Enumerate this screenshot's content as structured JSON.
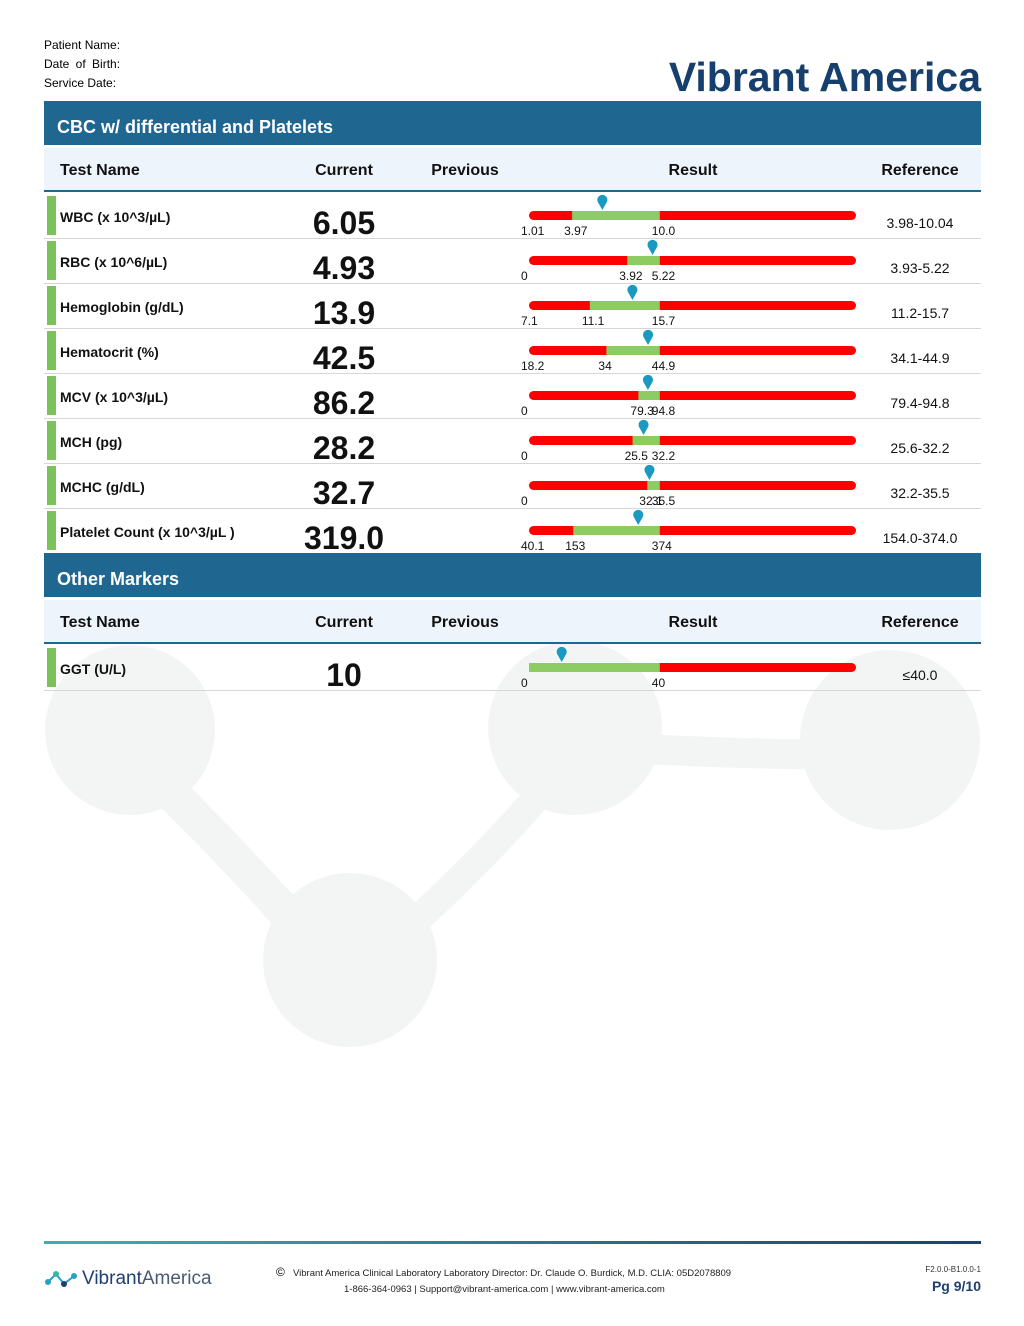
{
  "header": {
    "patient_name_label": "Patient Name:",
    "dob_label": "Date of Birth:",
    "service_date_label": "Service Date:",
    "brand": "Vibrant America"
  },
  "sections": [
    {
      "title": "CBC w/ differential and Platelets",
      "columns": [
        "Test Name",
        "Current",
        "Previous",
        "Result",
        "Reference"
      ],
      "rows": [
        {
          "name": "WBC (x 10^3/µL)",
          "current": "6.05",
          "ticks": [
            "1.01",
            "3.97",
            "10.0"
          ],
          "reference": "3.98-10.04"
        },
        {
          "name": "RBC (x 10^6/µL)",
          "current": "4.93",
          "ticks": [
            "0",
            "3.92",
            "5.22"
          ],
          "reference": "3.93-5.22"
        },
        {
          "name": "Hemoglobin (g/dL)",
          "current": "13.9",
          "ticks": [
            "7.1",
            "11.1",
            "15.7"
          ],
          "reference": "11.2-15.7"
        },
        {
          "name": "Hematocrit (%)",
          "current": "42.5",
          "ticks": [
            "18.2",
            "34",
            "44.9"
          ],
          "reference": "34.1-44.9"
        },
        {
          "name": "MCV (x 10^3/µL)",
          "current": "86.2",
          "ticks": [
            "0",
            "79.3",
            "94.8"
          ],
          "reference": "79.4-94.8"
        },
        {
          "name": "MCH (pg)",
          "current": "28.2",
          "ticks": [
            "0",
            "25.5",
            "32.2"
          ],
          "reference": "25.6-32.2"
        },
        {
          "name": "MCHC (g/dL)",
          "current": "32.7",
          "ticks": [
            "0",
            "32.1",
            "35.5"
          ],
          "reference": "32.2-35.5"
        },
        {
          "name": "Platelet Count (x 10^3/µL )",
          "current": "319.0",
          "ticks": [
            "40.1",
            "153",
            "374"
          ],
          "reference": "154.0-374.0"
        }
      ]
    },
    {
      "title": "Other Markers",
      "columns": [
        "Test Name",
        "Current",
        "Previous",
        "Result",
        "Reference"
      ],
      "rows": [
        {
          "name": "GGT (U/L)",
          "current": "10",
          "ticks": [
            "0",
            "40"
          ],
          "reference": "≤40.0"
        }
      ]
    }
  ],
  "footer": {
    "copyright": "©",
    "line1": "Vibrant America Clinical Laboratory Laboratory Director: Dr. Claude O. Burdick, M.D. CLIA: 05D2078809",
    "line2": "1-866-364-0963 | Support@vibrant-america.com | www.vibrant-america.com",
    "logo_part1": "Vibrant",
    "logo_part2": "America",
    "version": "F2.0.0-B1.0.0-1",
    "page": "Pg 9/10"
  }
}
